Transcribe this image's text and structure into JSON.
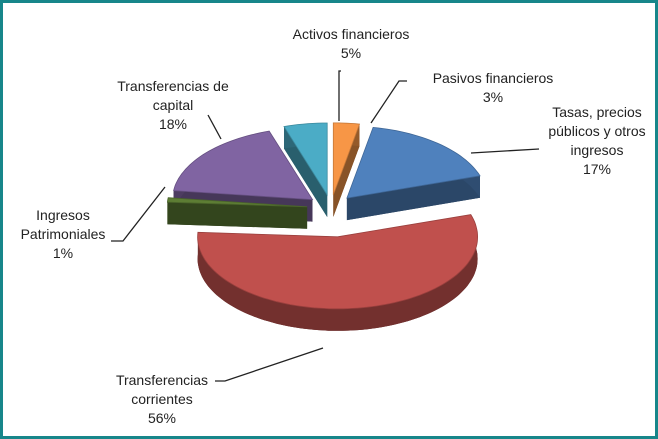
{
  "chart_data": {
    "type": "pie",
    "categories": [
      "Activos financieros",
      "Pasivos financieros",
      "Tasas, precios públicos y otros ingresos",
      "Transferencias corrientes",
      "Ingresos Patrimoniales",
      "Transferencias de capital"
    ],
    "values": [
      5,
      3,
      17,
      56,
      1,
      18
    ],
    "value_labels": [
      "5%",
      "3%",
      "17%",
      "56%",
      "1%",
      "18%"
    ],
    "colors": [
      "#4bacc6",
      "#f79646",
      "#4f81bd",
      "#c0504d",
      "#5d7d34",
      "#8064a2"
    ]
  }
}
